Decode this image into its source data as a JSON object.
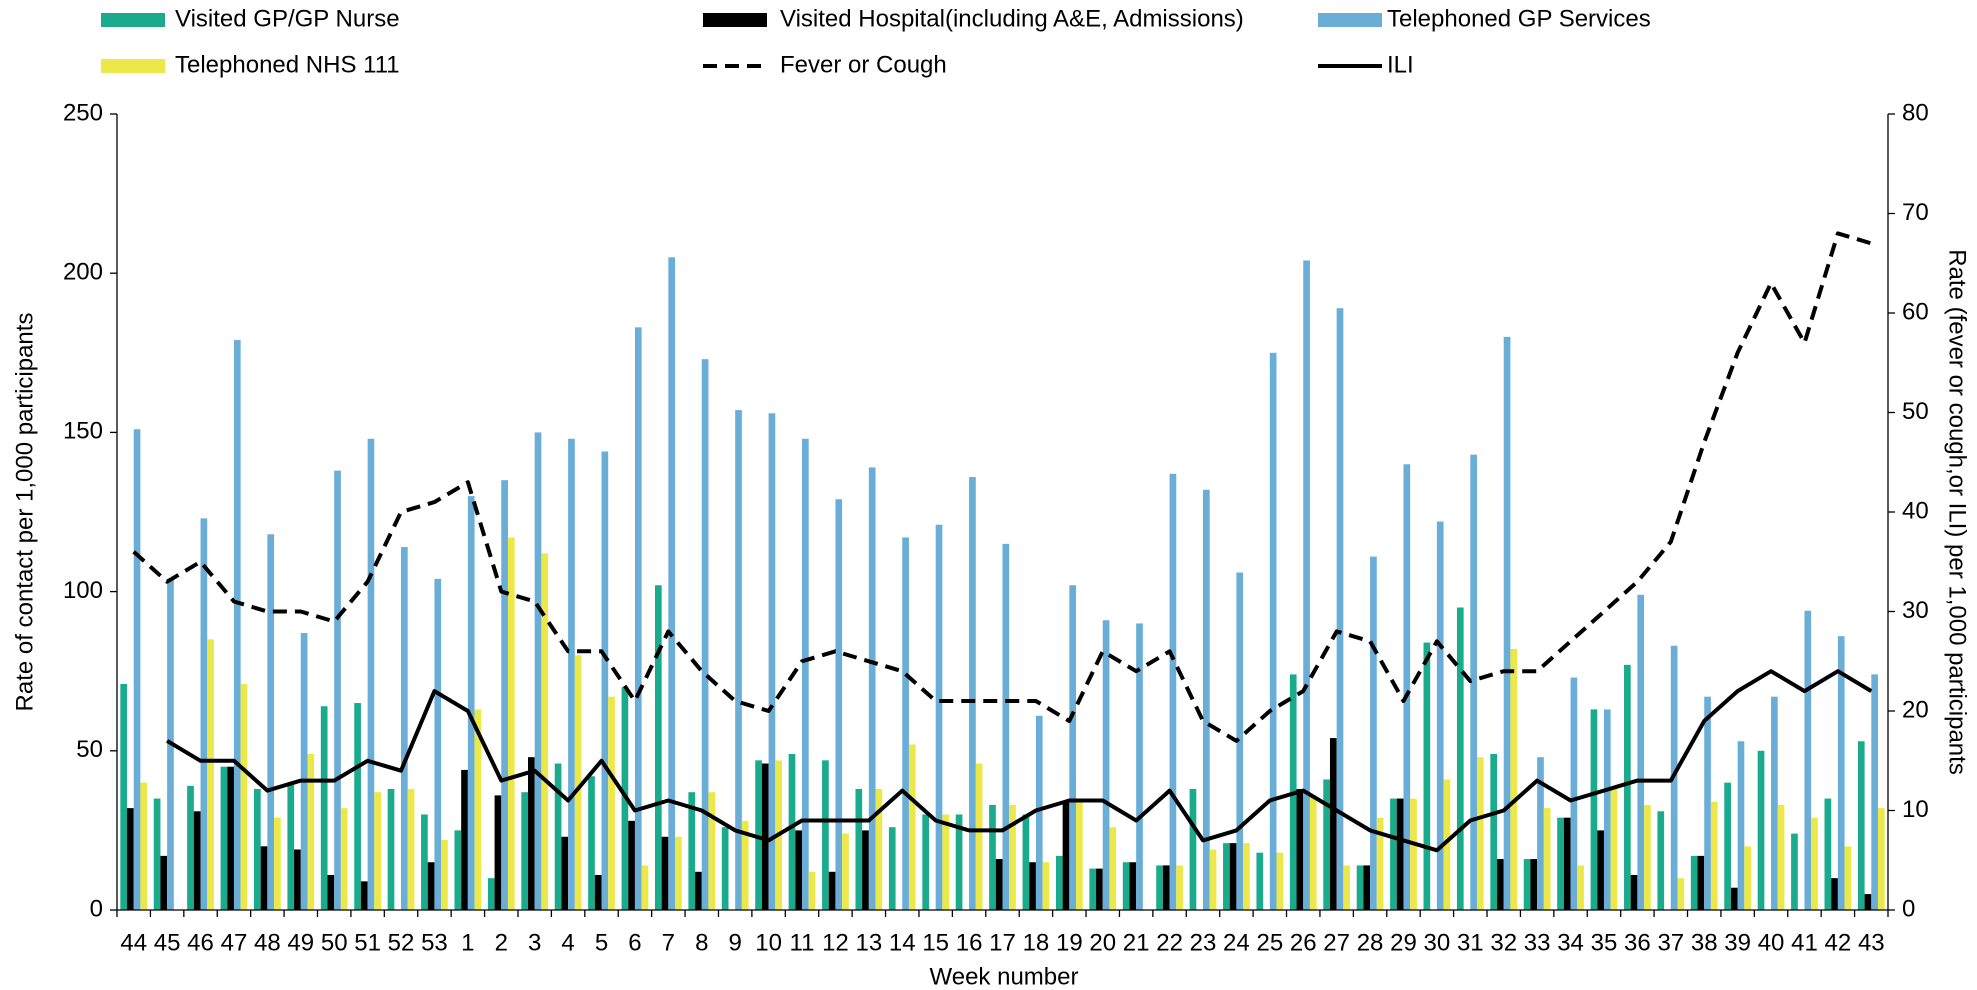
{
  "chart_data": {
    "type": "bar",
    "xlabel": "Week number",
    "ylabel": "Rate of contact per 1,000 participants",
    "y2label": "Rate (fever or cough,or ILI) per 1,000 participants",
    "categories": [
      "44",
      "45",
      "46",
      "47",
      "48",
      "49",
      "50",
      "51",
      "52",
      "53",
      "1",
      "2",
      "3",
      "4",
      "5",
      "6",
      "7",
      "8",
      "9",
      "10",
      "11",
      "12",
      "13",
      "14",
      "15",
      "16",
      "17",
      "18",
      "19",
      "20",
      "21",
      "22",
      "23",
      "24",
      "25",
      "26",
      "27",
      "28",
      "29",
      "30",
      "31",
      "32",
      "33",
      "34",
      "35",
      "36",
      "37",
      "38",
      "39",
      "40",
      "41",
      "42",
      "43"
    ],
    "ylim": [
      0,
      250
    ],
    "yticks": [
      0,
      50,
      100,
      150,
      200,
      250
    ],
    "y2lim": [
      0,
      80
    ],
    "y2ticks": [
      0,
      10,
      20,
      30,
      40,
      50,
      60,
      70,
      80
    ],
    "series": [
      {
        "name": "Visited GP/GP Nurse",
        "type": "bar",
        "color": "#1aaa8c",
        "values": [
          71,
          35,
          39,
          45,
          38,
          40,
          64,
          65,
          38,
          30,
          25,
          10,
          37,
          46,
          42,
          70,
          102,
          37,
          26,
          47,
          49,
          47,
          38,
          26,
          30,
          30,
          33,
          30,
          17,
          13,
          15,
          14,
          38,
          21,
          18,
          74,
          41,
          14,
          35,
          84,
          95,
          49,
          16,
          29,
          63,
          77,
          31,
          17,
          40,
          50,
          24,
          35,
          53
        ]
      },
      {
        "name": "Visited Hospital(including A&E, Admissions)",
        "type": "bar",
        "color": "#000000",
        "values": [
          32,
          17,
          31,
          45,
          20,
          19,
          11,
          9,
          0,
          15,
          44,
          36,
          48,
          23,
          11,
          28,
          23,
          12,
          0,
          46,
          25,
          12,
          25,
          0,
          0,
          0,
          16,
          15,
          34,
          13,
          15,
          14,
          0,
          21,
          0,
          38,
          54,
          14,
          35,
          0,
          0,
          16,
          16,
          29,
          25,
          11,
          0,
          17,
          7,
          0,
          0,
          10,
          5
        ]
      },
      {
        "name": "Telephoned GP Services",
        "type": "bar",
        "color": "#6aaed8",
        "values": [
          151,
          104,
          123,
          179,
          118,
          87,
          138,
          148,
          114,
          104,
          130,
          135,
          150,
          148,
          144,
          183,
          205,
          173,
          157,
          156,
          148,
          129,
          139,
          117,
          121,
          136,
          115,
          61,
          102,
          91,
          90,
          137,
          132,
          106,
          175,
          204,
          189,
          111,
          140,
          122,
          143,
          180,
          48,
          73,
          63,
          99,
          83,
          67,
          53,
          67,
          94,
          86,
          74
        ]
      },
      {
        "name": "Telephoned NHS 111",
        "type": "bar",
        "color": "#ede84a",
        "values": [
          40,
          0,
          85,
          71,
          29,
          49,
          32,
          37,
          38,
          22,
          63,
          117,
          112,
          80,
          67,
          14,
          23,
          37,
          28,
          47,
          12,
          24,
          38,
          52,
          30,
          46,
          33,
          15,
          35,
          26,
          0,
          14,
          19,
          21,
          18,
          36,
          14,
          29,
          35,
          41,
          48,
          82,
          32,
          14,
          38,
          33,
          10,
          34,
          20,
          33,
          29,
          20,
          32
        ]
      },
      {
        "name": "Fever or Cough",
        "type": "line",
        "axis": "y2",
        "color": "#000000",
        "dashed": true,
        "values": [
          36,
          33,
          35,
          31,
          30,
          30,
          29,
          33,
          40,
          41,
          43,
          32,
          31,
          26,
          26,
          21,
          28,
          24,
          21,
          20,
          25,
          26,
          25,
          24,
          21,
          21,
          21,
          21,
          19,
          26,
          24,
          26,
          19,
          17,
          20,
          22,
          28,
          27,
          21,
          27,
          23,
          24,
          24,
          27,
          30,
          33,
          37,
          47,
          56,
          63,
          57,
          68,
          67
        ]
      },
      {
        "name": "ILI",
        "type": "line",
        "axis": "y2",
        "color": "#000000",
        "dashed": false,
        "values": [
          null,
          17,
          15,
          15,
          12,
          13,
          13,
          15,
          14,
          22,
          20,
          13,
          14,
          11,
          15,
          10,
          11,
          10,
          8,
          7,
          9,
          9,
          9,
          12,
          9,
          8,
          8,
          10,
          11,
          11,
          9,
          12,
          7,
          8,
          11,
          12,
          10,
          8,
          7,
          6,
          9,
          10,
          13,
          11,
          12,
          13,
          13,
          19,
          22,
          24,
          22,
          24,
          22
        ]
      }
    ]
  }
}
